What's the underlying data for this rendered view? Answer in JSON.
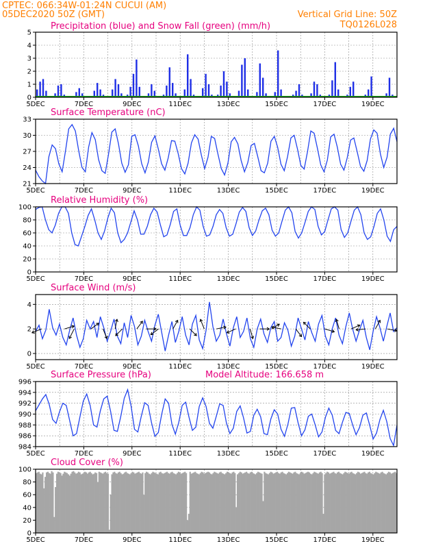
{
  "header": {
    "line1": "CPTEC:  066:34W-01:24N  CUCUI (AM)",
    "line2": "05DEC2020 50Z (GMT)",
    "grid_note": "Vertical Grid Line: 50Z",
    "product": "TQ0126L028"
  },
  "day_labels": [
    "5DEC",
    "7DEC",
    "9DEC",
    "11DEC",
    "13DEC",
    "15DEC",
    "17DEC",
    "19DEC"
  ],
  "colors": {
    "precip": "#1f2fe6",
    "snow": "#1a9e1a",
    "line": "#2244ee",
    "cloud": "#a6a6a6",
    "header": "#ff7f00",
    "title": "#e6007e"
  },
  "chart_data": [
    {
      "id": "precip",
      "type": "bar",
      "title": "Precipitation (blue) and Snow Fall (green) (mm/h)",
      "xlabel": "",
      "ylabel": "",
      "ylim": [
        0,
        5
      ],
      "yticks": [
        0,
        1,
        2,
        3,
        4,
        5
      ],
      "x_range_days": [
        5,
        20
      ],
      "step_hours": 3,
      "series": [
        {
          "name": "Precipitation",
          "values": [
            0.6,
            1.2,
            1.4,
            0.5,
            0,
            0,
            0.3,
            0.9,
            1.0,
            0.2,
            0,
            0,
            0.1,
            0.4,
            0.7,
            0.3,
            0,
            0,
            0.1,
            0.5,
            1.1,
            0.6,
            0.2,
            0,
            0.1,
            0.6,
            1.4,
            1.0,
            0.3,
            0,
            0.2,
            0.8,
            1.8,
            2.9,
            0.8,
            0,
            0.1,
            0.3,
            1.0,
            0.5,
            0.1,
            0,
            0.2,
            0.9,
            2.3,
            1.1,
            0.3,
            0,
            0.1,
            0.6,
            3.3,
            1.4,
            0.2,
            0,
            0.1,
            0.7,
            1.8,
            1.0,
            0.2,
            0,
            0.2,
            0.9,
            2.0,
            1.2,
            0.3,
            0,
            0.1,
            0.5,
            2.5,
            3.0,
            0.6,
            0,
            0.1,
            0.4,
            2.6,
            1.5,
            0.3,
            0,
            0.1,
            0.4,
            3.6,
            0.6,
            0.1,
            0,
            0,
            0.2,
            0.5,
            1.0,
            0.2,
            0,
            0,
            0.3,
            1.2,
            1.0,
            0.2,
            0,
            0,
            0.2,
            1.3,
            2.7,
            0.6,
            0,
            0,
            0.2,
            0.8,
            1.2,
            0.1,
            0,
            0,
            0.2,
            0.6,
            1.6,
            0.1,
            0,
            0,
            0.1,
            0.3,
            1.5,
            0.2,
            0
          ]
        },
        {
          "name": "Snow Fall",
          "values": [
            0
          ]
        }
      ]
    },
    {
      "id": "temp",
      "type": "line",
      "title": "Surface Temperature (nC)",
      "xlabel": "",
      "ylabel": "",
      "ylim": [
        21,
        33
      ],
      "yticks": [
        21,
        24,
        27,
        30,
        33
      ],
      "x_range_days": [
        5,
        20
      ],
      "series": [
        {
          "name": "Temperature",
          "values": [
            23.5,
            22.3,
            21.5,
            21.0,
            26.0,
            28.2,
            27.5,
            24.7,
            23.2,
            27.0,
            31.2,
            32.0,
            30.8,
            27.1,
            24.0,
            23.2,
            27.8,
            30.5,
            29.2,
            25.5,
            23.4,
            22.9,
            26.5,
            30.6,
            31.2,
            28.4,
            24.8,
            23.1,
            24.5,
            29.8,
            30.1,
            28.0,
            24.7,
            23.0,
            25.0,
            28.7,
            29.9,
            27.5,
            24.7,
            23.5,
            25.8,
            29.0,
            28.9,
            26.6,
            23.8,
            22.8,
            24.8,
            28.6,
            30.1,
            29.3,
            26.3,
            23.8,
            25.9,
            29.8,
            29.4,
            26.5,
            23.8,
            22.6,
            24.8,
            28.8,
            29.6,
            28.4,
            25.3,
            23.2,
            24.9,
            28.1,
            28.5,
            26.0,
            23.4,
            23.0,
            24.8,
            28.9,
            29.8,
            27.8,
            24.6,
            23.4,
            26.0,
            29.5,
            30.0,
            27.4,
            24.4,
            23.7,
            26.9,
            30.8,
            30.4,
            27.6,
            24.5,
            23.2,
            25.4,
            29.7,
            30.2,
            27.8,
            24.6,
            23.5,
            25.8,
            29.1,
            29.5,
            26.9,
            24.2,
            23.3,
            25.3,
            29.3,
            31.0,
            30.4,
            26.5,
            24.0,
            25.9,
            30.2,
            31.3,
            28.8
          ]
        }
      ]
    },
    {
      "id": "rh",
      "type": "line",
      "title": "Relative Humidity (%)",
      "xlabel": "",
      "ylabel": "",
      "ylim": [
        0,
        100
      ],
      "yticks": [
        0,
        20,
        40,
        60,
        80,
        100
      ],
      "x_range_days": [
        5,
        20
      ],
      "series": [
        {
          "name": "Relative Humidity",
          "values": [
            96,
            99,
            100,
            80,
            65,
            60,
            72,
            90,
            100,
            100,
            90,
            60,
            42,
            40,
            55,
            70,
            87,
            97,
            80,
            60,
            50,
            63,
            83,
            98,
            91,
            60,
            45,
            50,
            60,
            77,
            94,
            80,
            58,
            58,
            70,
            88,
            98,
            92,
            72,
            54,
            57,
            73,
            93,
            97,
            72,
            56,
            56,
            68,
            88,
            100,
            95,
            70,
            55,
            57,
            70,
            88,
            96,
            90,
            68,
            55,
            58,
            74,
            92,
            99,
            93,
            68,
            56,
            63,
            80,
            94,
            98,
            88,
            64,
            55,
            60,
            78,
            95,
            100,
            91,
            62,
            52,
            60,
            76,
            93,
            100,
            96,
            70,
            57,
            62,
            80,
            97,
            100,
            95,
            65,
            53,
            60,
            78,
            95,
            100,
            88,
            60,
            50,
            54,
            70,
            90,
            97,
            80,
            55,
            47,
            65,
            70
          ]
        }
      ]
    },
    {
      "id": "wind",
      "type": "line",
      "title": "Surface Wind (m/s)",
      "xlabel": "",
      "ylabel": "",
      "ylim": [
        -0.5,
        4.8
      ],
      "yticks": [
        0,
        2,
        4
      ],
      "x_range_days": [
        5,
        20
      ],
      "series": [
        {
          "name": "Wind speed",
          "values": [
            1.8,
            2.3,
            1.2,
            1.9,
            3.6,
            2.1,
            1.5,
            2.4,
            1.3,
            0.7,
            1.9,
            2.9,
            1.5,
            0.5,
            1.2,
            2.7,
            2.0,
            2.6,
            1.3,
            3.0,
            2.1,
            1.0,
            1.8,
            2.8,
            1.4,
            0.8,
            2.5,
            1.3,
            3.1,
            2.2,
            0.7,
            1.4,
            2.7,
            1.8,
            1.0,
            2.3,
            3.2,
            1.7,
            0.2,
            1.5,
            2.6,
            0.9,
            1.8,
            3.0,
            1.5,
            0.7,
            2.4,
            3.1,
            1.1,
            0.4,
            1.9,
            4.2,
            2.2,
            1.0,
            1.5,
            2.8,
            1.6,
            0.6,
            2.1,
            3.0,
            1.3,
            1.8,
            2.9,
            1.2,
            0.5,
            2.0,
            2.8,
            1.6,
            0.9,
            2.1,
            2.6,
            1.0,
            1.3,
            2.5,
            1.9,
            0.6,
            1.4,
            2.9,
            2.0,
            1.1,
            2.6,
            1.7,
            1.0,
            2.4,
            3.1,
            1.4,
            0.7,
            2.0,
            2.9,
            1.5,
            0.8,
            2.2,
            3.3,
            2.0,
            1.0,
            1.9,
            2.7,
            1.3,
            0.3,
            1.8,
            3.0,
            2.1,
            1.0,
            2.2,
            3.3,
            1.8,
            2.1
          ]
        }
      ],
      "vectors": [
        {
          "day": 5.25,
          "u": -1,
          "v": -0.4
        },
        {
          "day": 6.2,
          "u": 1,
          "v": 0.3
        },
        {
          "day": 6.6,
          "u": -0.5,
          "v": -1
        },
        {
          "day": 7.3,
          "u": 0.8,
          "v": 0.6
        },
        {
          "day": 7.8,
          "u": 0.4,
          "v": -1
        },
        {
          "day": 8.3,
          "u": 0.2,
          "v": 1
        },
        {
          "day": 8.6,
          "u": -0.7,
          "v": -0.7
        },
        {
          "day": 9.2,
          "u": 0.6,
          "v": 0.8
        },
        {
          "day": 9.6,
          "u": 1,
          "v": 0
        },
        {
          "day": 10.1,
          "u": -0.8,
          "v": -0.6
        },
        {
          "day": 10.7,
          "u": 0.5,
          "v": 0.9
        },
        {
          "day": 11.4,
          "u": 0.7,
          "v": -0.7
        },
        {
          "day": 12.0,
          "u": -0.4,
          "v": 1
        },
        {
          "day": 12.5,
          "u": 1,
          "v": 0.2
        },
        {
          "day": 13.3,
          "u": -0.9,
          "v": -0.4
        },
        {
          "day": 13.9,
          "u": 0.3,
          "v": -1
        },
        {
          "day": 14.3,
          "u": 1,
          "v": 0
        },
        {
          "day": 14.8,
          "u": 0.8,
          "v": 0.5
        },
        {
          "day": 15.2,
          "u": -1,
          "v": 0.2
        },
        {
          "day": 15.8,
          "u": 0.6,
          "v": -0.8
        },
        {
          "day": 16.4,
          "u": -0.7,
          "v": 0.7
        },
        {
          "day": 17.0,
          "u": 1,
          "v": -0.3
        },
        {
          "day": 17.6,
          "u": -0.3,
          "v": 1
        },
        {
          "day": 18.1,
          "u": 0.9,
          "v": 0.4
        },
        {
          "day": 18.7,
          "u": -1,
          "v": -0.1
        },
        {
          "day": 19.1,
          "u": 0.5,
          "v": 0.9
        },
        {
          "day": 19.6,
          "u": 1,
          "v": -0.2
        }
      ]
    },
    {
      "id": "pres",
      "type": "line",
      "title": "Surface Pressure (hPa)",
      "annotation": "Model Altitude: 166.658 m",
      "xlabel": "",
      "ylabel": "",
      "ylim": [
        984,
        996
      ],
      "yticks": [
        984,
        986,
        988,
        990,
        992,
        994,
        996
      ],
      "x_range_days": [
        5,
        20
      ],
      "series": [
        {
          "name": "Pressure",
          "values": [
            990.6,
            991.7,
            992.8,
            993.6,
            991.8,
            989.0,
            988.3,
            990.4,
            992.0,
            991.6,
            988.8,
            986.0,
            986.4,
            989.5,
            992.4,
            993.7,
            991.6,
            988.0,
            987.6,
            990.6,
            992.8,
            993.3,
            990.5,
            987.0,
            986.8,
            989.6,
            992.9,
            994.5,
            991.5,
            987.2,
            986.7,
            989.6,
            992.1,
            991.6,
            988.4,
            985.9,
            986.6,
            990.0,
            992.8,
            992.0,
            988.1,
            986.3,
            988.5,
            991.6,
            992.2,
            989.4,
            987.0,
            987.6,
            991.4,
            993.0,
            991.4,
            988.3,
            987.4,
            989.6,
            991.9,
            991.6,
            988.3,
            986.4,
            987.4,
            990.5,
            991.5,
            989.3,
            986.5,
            986.8,
            989.8,
            990.9,
            989.5,
            986.4,
            986.2,
            989.1,
            990.8,
            990.0,
            987.2,
            985.9,
            988.1,
            991.1,
            991.2,
            988.4,
            986.0,
            987.1,
            989.6,
            990.0,
            988.0,
            985.8,
            986.7,
            989.4,
            991.1,
            989.8,
            987.0,
            986.4,
            988.5,
            990.3,
            990.1,
            988.0,
            986.2,
            987.5,
            989.8,
            990.2,
            987.9,
            985.4,
            986.5,
            989.0,
            990.7,
            988.6,
            985.5,
            984.2,
            988.0
          ]
        }
      ]
    },
    {
      "id": "cloud",
      "type": "bar",
      "title": "Cloud Cover (%)",
      "xlabel": "",
      "ylabel": "",
      "ylim": [
        0,
        100
      ],
      "yticks": [
        0,
        20,
        40,
        60,
        80,
        100
      ],
      "x_range_days": [
        5,
        20
      ],
      "series": [
        {
          "name": "Cloud Cover",
          "values": [
            94,
            95,
            96,
            93,
            92,
            95,
            70,
            88,
            95,
            96,
            94,
            93,
            97,
            95,
            25,
            72,
            93,
            96,
            95,
            94,
            90,
            93,
            96,
            95,
            94,
            92,
            90,
            93,
            96,
            97,
            95,
            93,
            94,
            96,
            95,
            92,
            93,
            94,
            96,
            95,
            93,
            95,
            96,
            94,
            92,
            93,
            95,
            94,
            80,
            96,
            95,
            94,
            93,
            95,
            96,
            94,
            93,
            5,
            60,
            92,
            95,
            96,
            94,
            93,
            95,
            96,
            94,
            92,
            93,
            95,
            96,
            94,
            93,
            92,
            94,
            96,
            95,
            93,
            94,
            95,
            96,
            94,
            93,
            95,
            60,
            94,
            96,
            95,
            93,
            92,
            94,
            96,
            95,
            94,
            93,
            92,
            95,
            96,
            94,
            93,
            94,
            95,
            96,
            94,
            93,
            95,
            96,
            94,
            93,
            92,
            94,
            96,
            95,
            93,
            94,
            95,
            96,
            94,
            20,
            30,
            96,
            93,
            94,
            95,
            96,
            94,
            93,
            92,
            94,
            96,
            95,
            93,
            94,
            95,
            96,
            95,
            93,
            92,
            94,
            96,
            95,
            94,
            93,
            95,
            96,
            94,
            93,
            92,
            94,
            96,
            95,
            94,
            93,
            95,
            96,
            94,
            40,
            92,
            94,
            96,
            95,
            93,
            94,
            95,
            96,
            94,
            93,
            95,
            96,
            94,
            93,
            92,
            94,
            96,
            95,
            94,
            93,
            50,
            96,
            94,
            93,
            92,
            94,
            96,
            95,
            93,
            94,
            95,
            96,
            94,
            93,
            95,
            96,
            94,
            93,
            92,
            94,
            96,
            95,
            94,
            93,
            95,
            96,
            94,
            93,
            92,
            94,
            96,
            95,
            93,
            94,
            95,
            96,
            95,
            93,
            92,
            94,
            96,
            95,
            94,
            93,
            95,
            96,
            94,
            30,
            92,
            94,
            96,
            95,
            93,
            94,
            95,
            96,
            94,
            93,
            95,
            96,
            94,
            93,
            92,
            94,
            96,
            95,
            94,
            93,
            95,
            96,
            94,
            93,
            92,
            94,
            96,
            95,
            93,
            94,
            95,
            96,
            94,
            93,
            95,
            96,
            94,
            93,
            92,
            94,
            96,
            95,
            94,
            93,
            95,
            96,
            94,
            93,
            92,
            94,
            96,
            95,
            93,
            94,
            95,
            96,
            94
          ]
        }
      ]
    }
  ]
}
